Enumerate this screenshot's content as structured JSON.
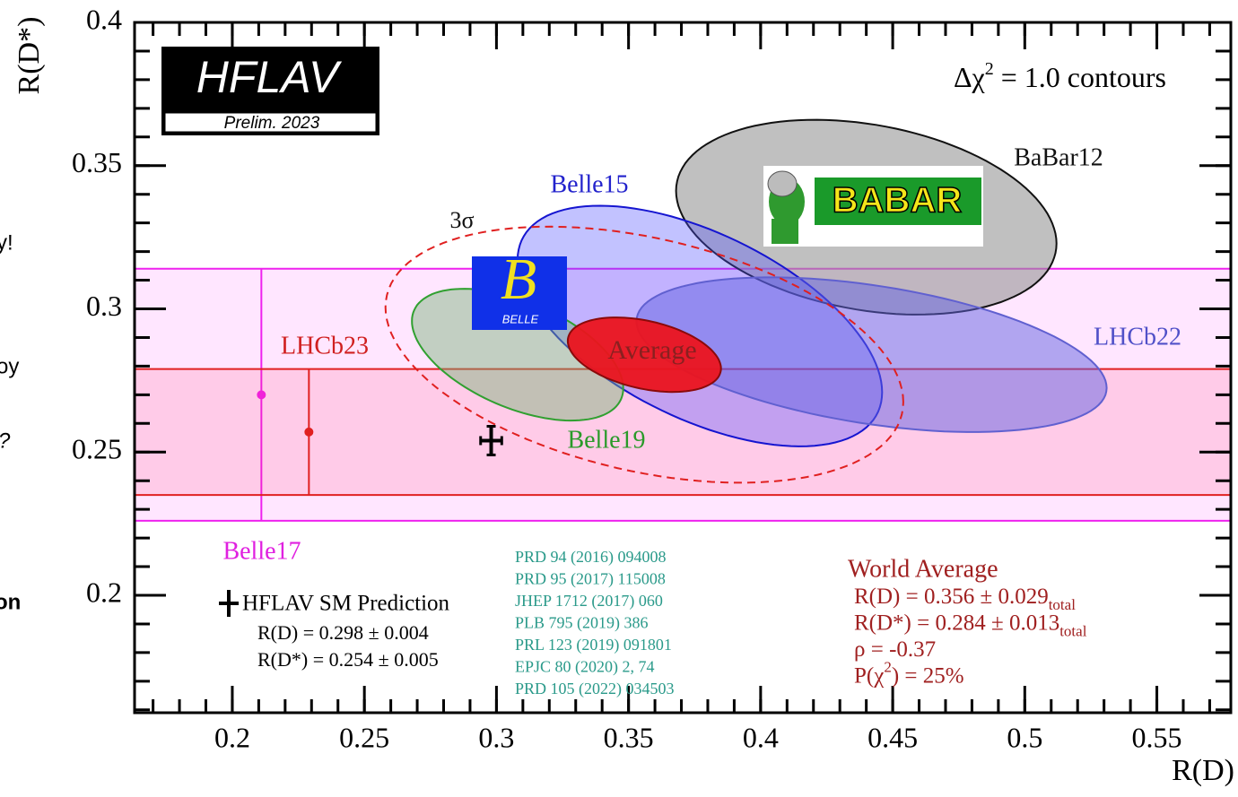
{
  "chart_data": {
    "type": "contour",
    "x_label": "R(D)",
    "y_label": "R(D*)",
    "xlim": [
      0.163,
      0.578
    ],
    "ylim": [
      0.159,
      0.4
    ],
    "xticks": [
      0.2,
      0.25,
      0.3,
      0.35,
      0.4,
      0.45,
      0.5,
      0.55
    ],
    "yticks": [
      0.2,
      0.25,
      0.3,
      0.35,
      0.4
    ],
    "logo": {
      "title": "HFLAV",
      "subtitle": "Prelim. 2023"
    },
    "contour_note": {
      "text": "Δχ",
      "sup": "2",
      "rest": " = 1.0 contours"
    },
    "bands": [
      {
        "name": "Belle17",
        "color": "#ee22ee",
        "fill": "rgba(255,60,255,0.13)",
        "x": 0.211,
        "y": 0.27,
        "err": 0.044
      },
      {
        "name": "LHCb23",
        "color": "#e02020",
        "fill": "rgba(255,40,90,0.14)",
        "x": 0.229,
        "y": 0.257,
        "err": 0.022
      }
    ],
    "ellipses": [
      {
        "name": "BaBar12",
        "fill": "rgba(150,150,150,0.6)",
        "stroke": "#111111",
        "dashed": false,
        "x": 0.44,
        "y": 0.332,
        "sx": 0.072,
        "sy": 0.034,
        "rho": -0.27
      },
      {
        "name": "Belle15",
        "fill": "rgba(80,80,255,0.35)",
        "stroke": "#1515d0",
        "dashed": false,
        "x": 0.377,
        "y": 0.294,
        "sx": 0.069,
        "sy": 0.042,
        "rho": -0.55
      },
      {
        "name": "LHCb22",
        "fill": "rgba(100,100,225,0.5)",
        "stroke": "#6060d0",
        "dashed": false,
        "x": 0.442,
        "y": 0.284,
        "sx": 0.089,
        "sy": 0.027,
        "rho": -0.43
      },
      {
        "name": "Belle19",
        "fill": "rgba(120,180,120,0.45)",
        "stroke": "#30a030",
        "dashed": false,
        "x": 0.308,
        "y": 0.284,
        "sx": 0.04,
        "sy": 0.023,
        "rho": -0.51
      },
      {
        "name": "Average",
        "fill": "rgba(235,20,30,0.95)",
        "stroke": "#8a0a0a",
        "dashed": false,
        "x": 0.356,
        "y": 0.284,
        "sx": 0.029,
        "sy": 0.013,
        "rho": -0.37
      },
      {
        "name": "3σ",
        "fill": "none",
        "stroke": "#e02020",
        "dashed": true,
        "x": 0.356,
        "y": 0.284,
        "sx": 0.098,
        "sy": 0.0447,
        "rho": -0.37
      }
    ],
    "sm_prediction": {
      "name": "HFLAV SM Prediction",
      "x": 0.298,
      "x_err": 0.004,
      "y": 0.254,
      "y_err": 0.005,
      "lines": [
        "R(D) = 0.298 ± 0.004",
        "R(D*) = 0.254 ± 0.005"
      ]
    },
    "references": [
      "PRD 94 (2016) 094008",
      "PRD 95 (2017) 115008",
      "JHEP 1712 (2017) 060",
      "PLB 795 (2019) 386",
      "PRL 123 (2019) 091801",
      "EPJC 80 (2020) 2, 74",
      "PRD 105 (2022) 034503"
    ],
    "world_average": {
      "title": "World Average",
      "lines": [
        {
          "text": "R(D) = 0.356 ± 0.029",
          "sub": "total"
        },
        {
          "text": "R(D*) = 0.284 ± 0.013",
          "sub": "total"
        },
        {
          "text": "ρ = -0.37"
        },
        {
          "text": "P(χ",
          "sup": "2",
          "rest": ") = 25%"
        }
      ]
    }
  },
  "logos": {
    "babar": "BABAR",
    "belle_symbol": "B",
    "belle": "BELLE"
  },
  "cropped_text": [
    "y!",
    "oy",
    "?",
    "on"
  ]
}
